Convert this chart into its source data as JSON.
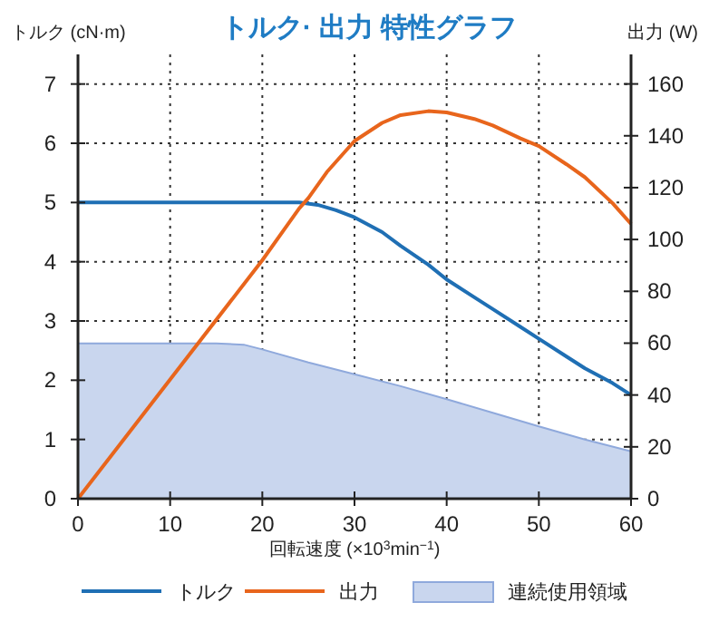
{
  "chart_data": {
    "type": "line",
    "title": "トルク· 出力  特性グラフ",
    "xlabel": "回転速度 (×10$^{3}$min$^{−1}$)",
    "ylabel": "トルク (cN·m)",
    "y2label": "出力 (W)",
    "xlim": [
      0,
      60
    ],
    "xticks": [
      0,
      10,
      20,
      30,
      40,
      50,
      60
    ],
    "ylim": [
      0,
      7.5
    ],
    "yticks": [
      0,
      1,
      2,
      3,
      4,
      5,
      6,
      7
    ],
    "y2lim": [
      0,
      171.4
    ],
    "y2ticks": [
      0,
      20,
      40,
      60,
      80,
      100,
      120,
      140,
      160
    ],
    "grid": true,
    "legend": "bottom",
    "series": [
      {
        "name": "トルク",
        "color": "#1f6fb4",
        "x": [
          0,
          10,
          20,
          24,
          26,
          28,
          30,
          33,
          35,
          38,
          40,
          43,
          45,
          48,
          50,
          53,
          55,
          58,
          60
        ],
        "values": [
          5,
          5,
          5,
          5,
          4.96,
          4.87,
          4.75,
          4.5,
          4.27,
          3.95,
          3.7,
          3.4,
          3.2,
          2.9,
          2.7,
          2.4,
          2.2,
          1.95,
          1.75
        ]
      },
      {
        "name": "出力",
        "color": "#e8651c",
        "axis": "y2",
        "x": [
          0,
          10,
          20,
          24,
          25,
          27,
          30,
          33,
          35,
          38,
          40,
          43,
          45,
          48,
          50,
          53,
          55,
          58,
          60
        ],
        "values": [
          0,
          46,
          92,
          112,
          116,
          126,
          138,
          145,
          148,
          149.5,
          149,
          146.5,
          144,
          139,
          136,
          129,
          124,
          114,
          106
        ]
      },
      {
        "name": "連続使用領域",
        "type": "area",
        "color": "#c9d6ee",
        "x": [
          0,
          10,
          15,
          18,
          20,
          25,
          30,
          35,
          40,
          45,
          50,
          55,
          60
        ],
        "values": [
          2.62,
          2.62,
          2.62,
          2.6,
          2.52,
          2.3,
          2.1,
          1.9,
          1.68,
          1.45,
          1.22,
          1,
          0.8
        ]
      }
    ]
  }
}
